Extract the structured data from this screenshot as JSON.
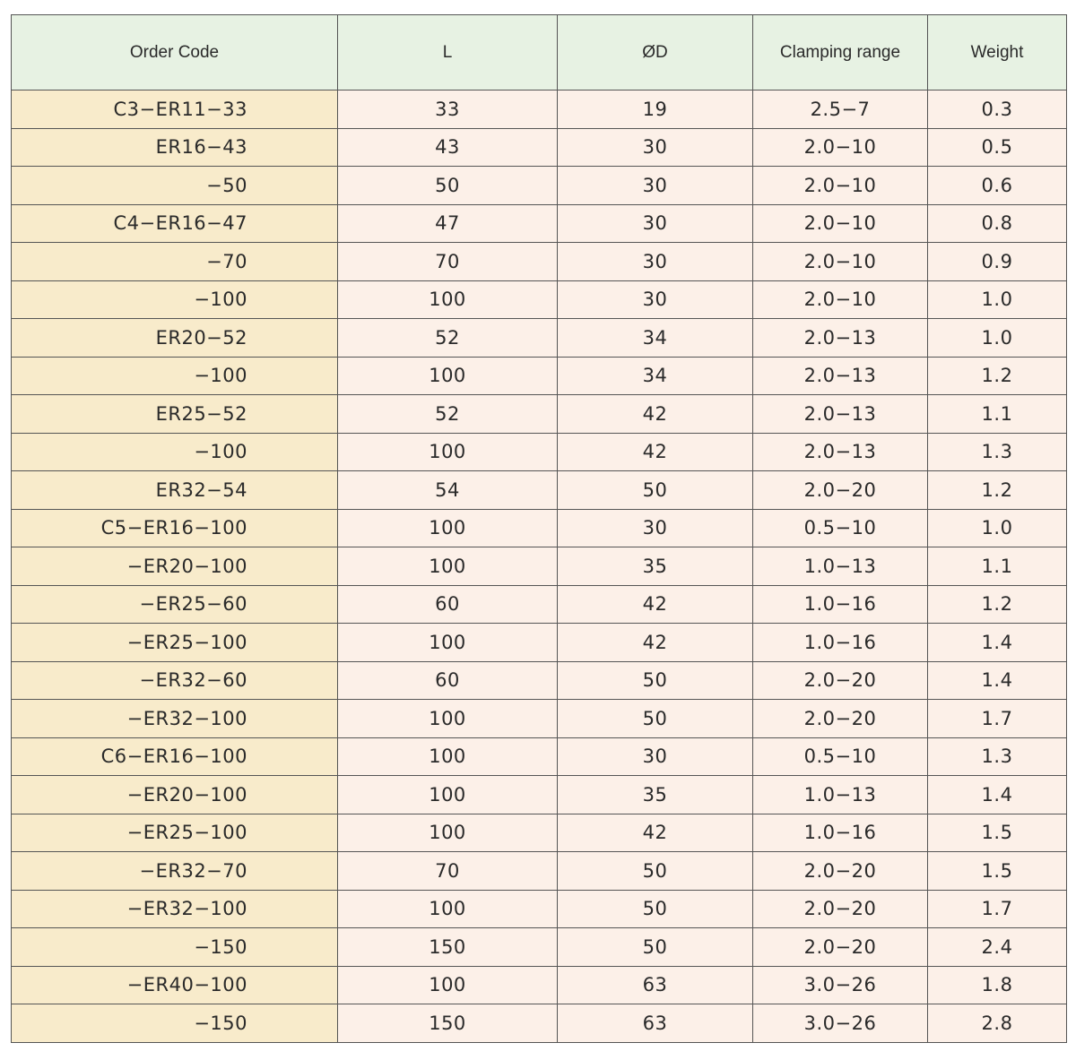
{
  "table": {
    "headers": [
      "Order Code",
      "L",
      "ØD",
      "Clamping range",
      "Weight"
    ],
    "rows": [
      [
        "C3−ER11−33",
        "33",
        "19",
        "2.5−7",
        "0.3"
      ],
      [
        "ER16−43",
        "43",
        "30",
        "2.0−10",
        "0.5"
      ],
      [
        "−50",
        "50",
        "30",
        "2.0−10",
        "0.6"
      ],
      [
        "C4−ER16−47",
        "47",
        "30",
        "2.0−10",
        "0.8"
      ],
      [
        "−70",
        "70",
        "30",
        "2.0−10",
        "0.9"
      ],
      [
        "−100",
        "100",
        "30",
        "2.0−10",
        "1.0"
      ],
      [
        "ER20−52",
        "52",
        "34",
        "2.0−13",
        "1.0"
      ],
      [
        "−100",
        "100",
        "34",
        "2.0−13",
        "1.2"
      ],
      [
        "ER25−52",
        "52",
        "42",
        "2.0−13",
        "1.1"
      ],
      [
        "−100",
        "100",
        "42",
        "2.0−13",
        "1.3"
      ],
      [
        "ER32−54",
        "54",
        "50",
        "2.0−20",
        "1.2"
      ],
      [
        "C5−ER16−100",
        "100",
        "30",
        "0.5−10",
        "1.0"
      ],
      [
        "−ER20−100",
        "100",
        "35",
        "1.0−13",
        "1.1"
      ],
      [
        "−ER25−60",
        "60",
        "42",
        "1.0−16",
        "1.2"
      ],
      [
        "−ER25−100",
        "100",
        "42",
        "1.0−16",
        "1.4"
      ],
      [
        "−ER32−60",
        "60",
        "50",
        "2.0−20",
        "1.4"
      ],
      [
        "−ER32−100",
        "100",
        "50",
        "2.0−20",
        "1.7"
      ],
      [
        "C6−ER16−100",
        "100",
        "30",
        "0.5−10",
        "1.3"
      ],
      [
        "−ER20−100",
        "100",
        "35",
        "1.0−13",
        "1.4"
      ],
      [
        "−ER25−100",
        "100",
        "42",
        "1.0−16",
        "1.5"
      ],
      [
        "−ER32−70",
        "70",
        "50",
        "2.0−20",
        "1.5"
      ],
      [
        "−ER32−100",
        "100",
        "50",
        "2.0−20",
        "1.7"
      ],
      [
        "−150",
        "150",
        "50",
        "2.0−20",
        "2.4"
      ],
      [
        "−ER40−100",
        "100",
        "63",
        "3.0−26",
        "1.8"
      ],
      [
        "−150",
        "150",
        "63",
        "3.0−26",
        "2.8"
      ]
    ]
  },
  "colors": {
    "header_bg": "#e7f2e3",
    "code_column_bg": "#f8ebcb",
    "value_columns_bg": "#fcf0e8",
    "border": "#555555"
  }
}
